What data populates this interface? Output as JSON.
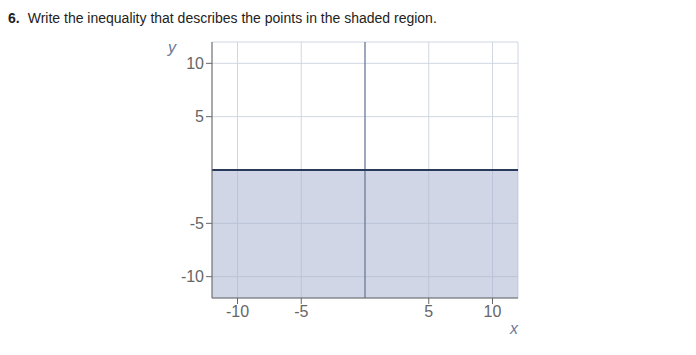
{
  "chart_data": {
    "type": "area",
    "title": "Write the inequality that describes the points in the shaded region.",
    "annotations": [
      "6."
    ],
    "x": [
      -12,
      12
    ],
    "series": [
      {
        "type": "area",
        "color": "#aab4cf",
        "values": [
          0,
          0
        ]
      },
      {
        "type": "line",
        "color": "#2a3a5a",
        "values": [
          0,
          0
        ]
      }
    ],
    "xlabel": "x",
    "ylabel": "y",
    "xlim": [
      -12,
      12
    ],
    "ylim": [
      -12,
      12
    ],
    "xticks": [
      -10,
      -5,
      5,
      10
    ],
    "yticks": [
      -10,
      -5,
      5,
      10
    ],
    "grid": true
  }
}
